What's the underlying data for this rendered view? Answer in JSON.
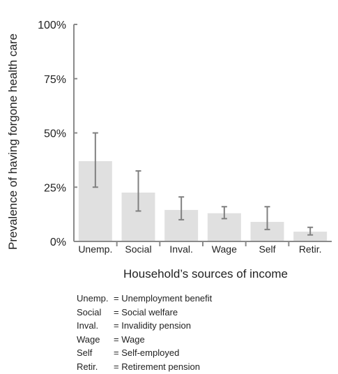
{
  "chart_data": {
    "type": "bar",
    "title": "",
    "xlabel": "Household’s sources of income",
    "ylabel": "Prevalence of having forgone health care",
    "ylim": [
      0,
      100
    ],
    "yticks": [
      "0%",
      "25%",
      "50%",
      "75%",
      "100%"
    ],
    "ytick_values": [
      0,
      25,
      50,
      75,
      100
    ],
    "categories": [
      "Unemp.",
      "Social",
      "Inval.",
      "Wage",
      "Self",
      "Retir."
    ],
    "values": [
      37,
      22.5,
      14.5,
      13,
      9,
      4.5
    ],
    "error_low": [
      25,
      14,
      10,
      10.5,
      5.5,
      3
    ],
    "error_high": [
      50,
      32.5,
      20.5,
      16,
      16,
      6.5
    ],
    "bar_color": "#e0e0e0",
    "error_color": "#808080",
    "grid": false,
    "legend": [
      {
        "abbr": "Unemp.",
        "eq": "= Unemployment benefit"
      },
      {
        "abbr": "Social",
        "eq": "= Social welfare"
      },
      {
        "abbr": "Inval.",
        "eq": "= Invalidity pension"
      },
      {
        "abbr": "Wage",
        "eq": "= Wage"
      },
      {
        "abbr": "Self",
        "eq": "= Self-employed"
      },
      {
        "abbr": "Retir.",
        "eq": "= Retirement pension"
      }
    ]
  }
}
